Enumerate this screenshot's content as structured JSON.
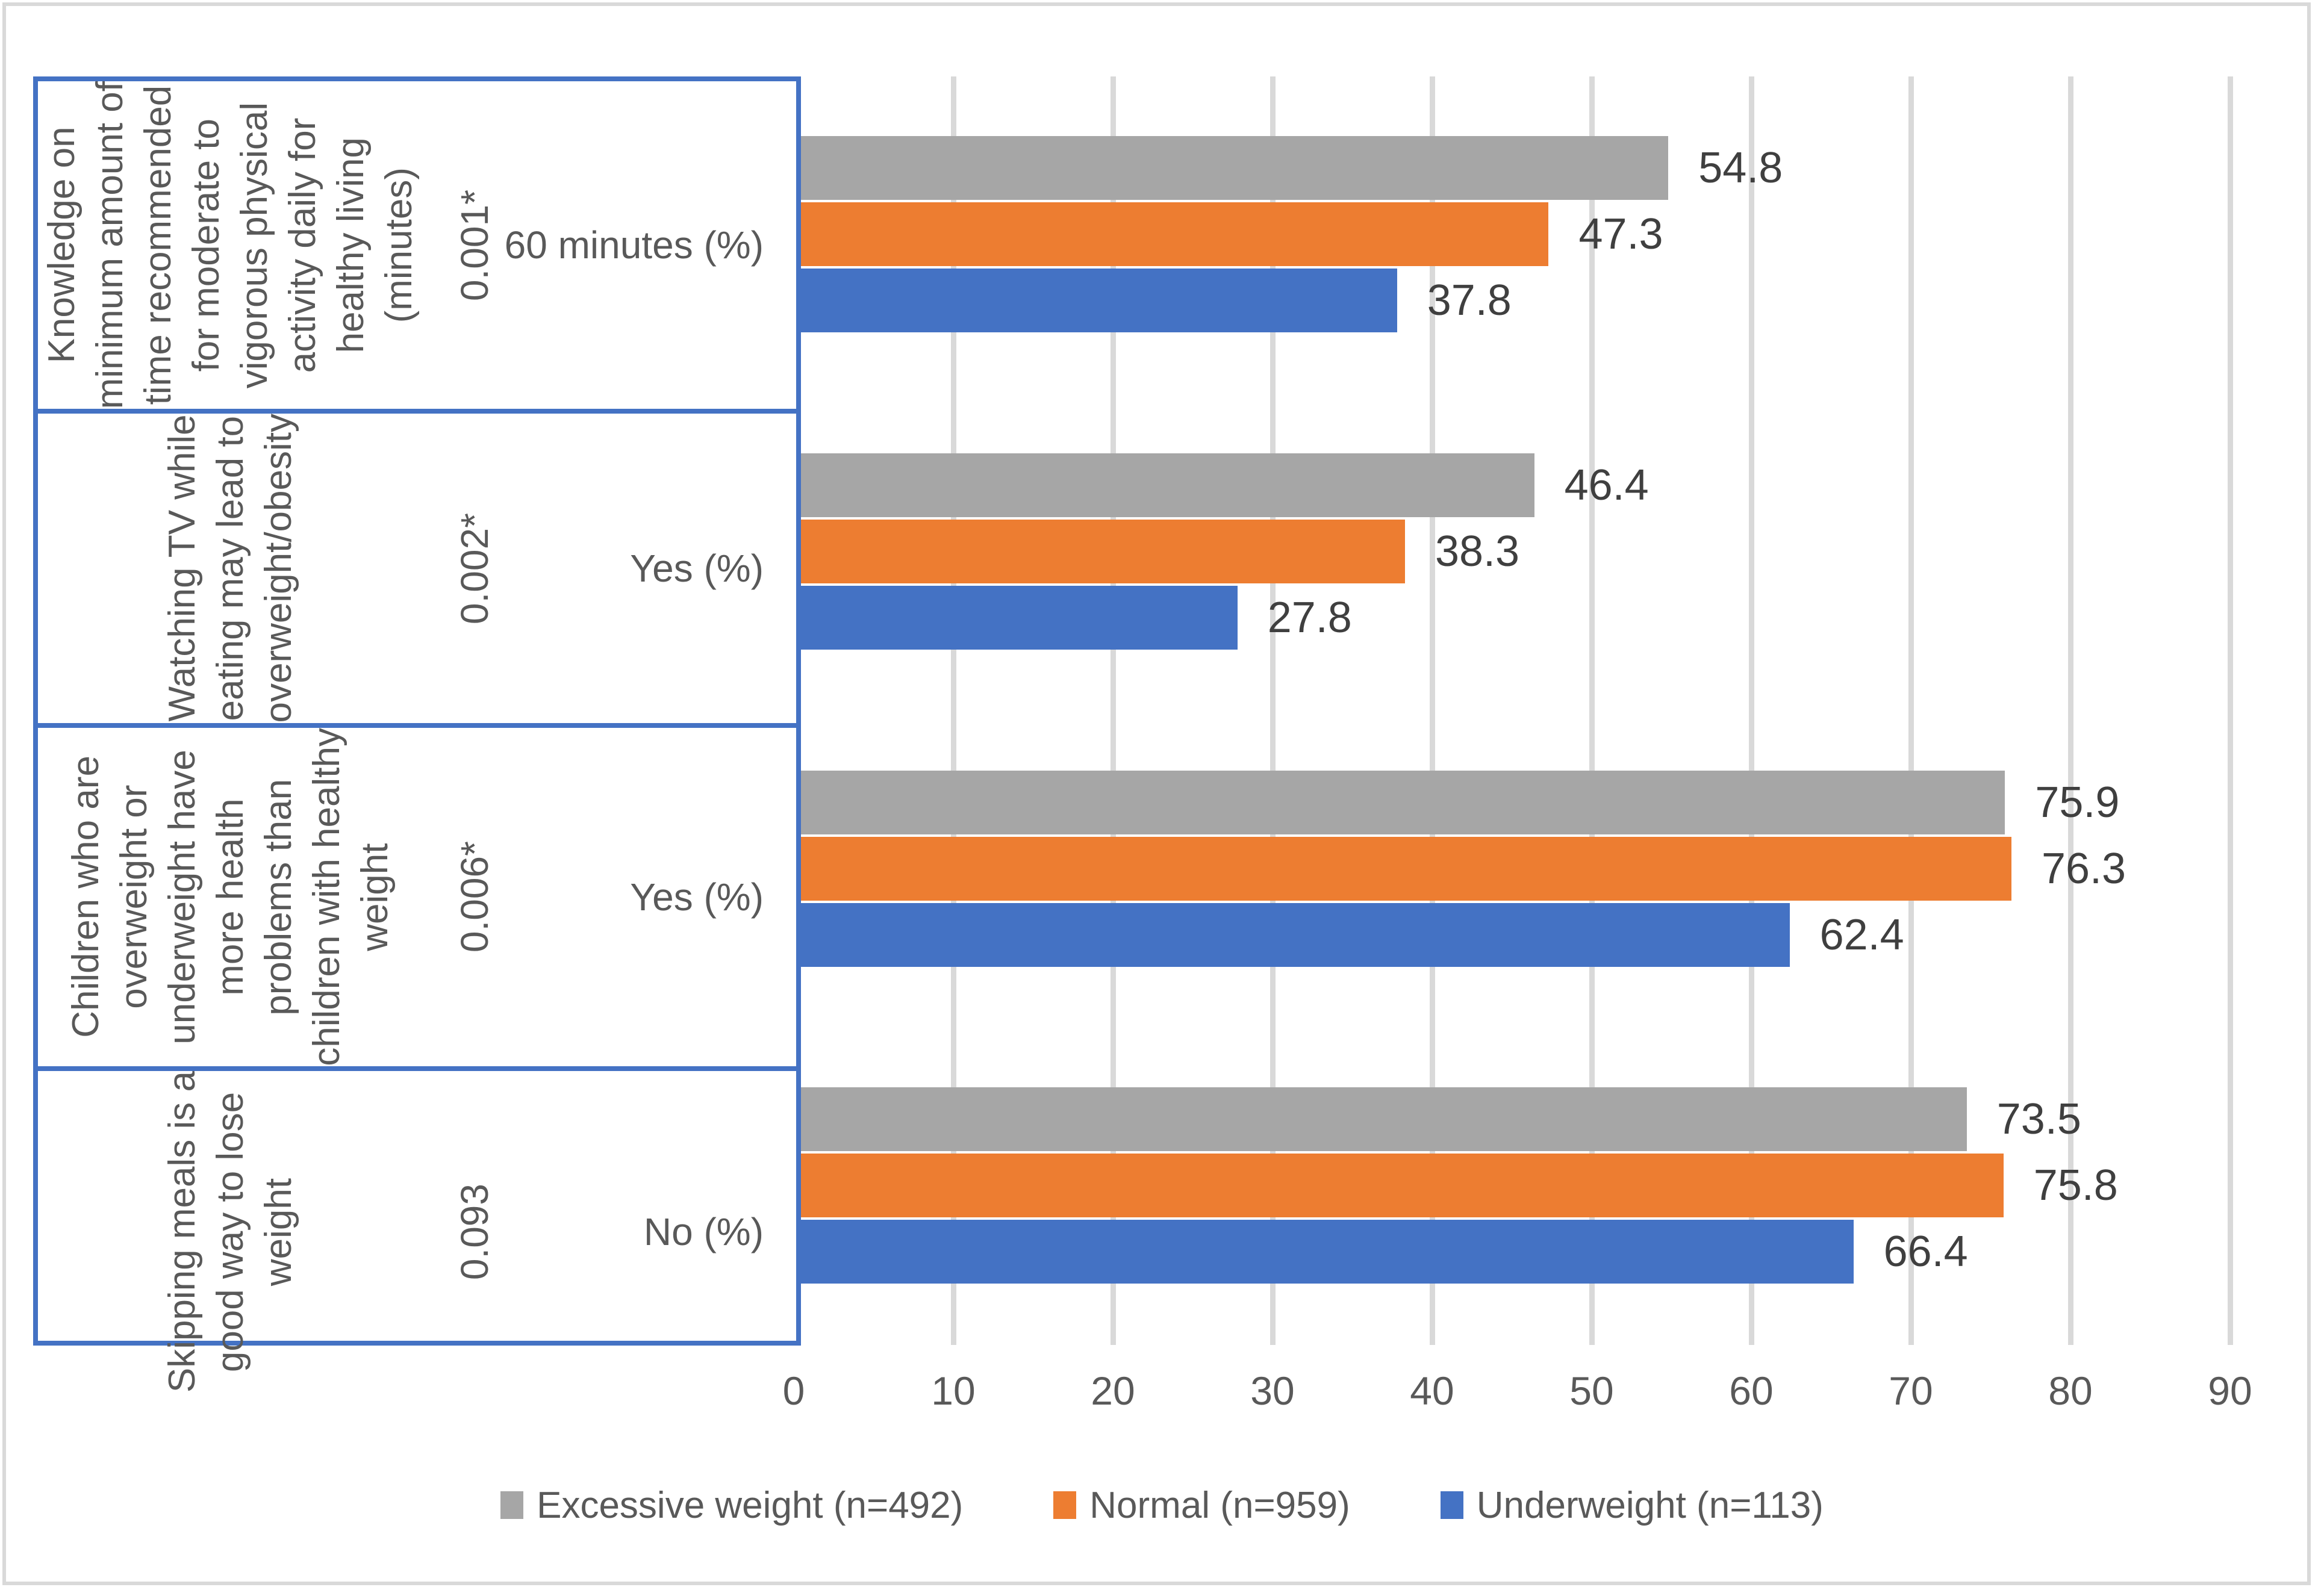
{
  "chart_data": {
    "type": "bar",
    "orientation": "horizontal",
    "title": "",
    "xlabel": "",
    "ylabel": "",
    "xlim": [
      0,
      90
    ],
    "x_ticks": [
      0,
      10,
      20,
      30,
      40,
      50,
      60,
      70,
      80,
      90
    ],
    "grid": "vertical",
    "legend_position": "bottom",
    "categories": [
      {
        "label_lines": [
          "Knowledge on",
          "minimum amount of",
          "time recommended",
          "for moderate to",
          "vigorous physical",
          "activity daily for",
          "healthy  living",
          "(minutes)"
        ],
        "p_value": "0.001*",
        "response_label": "60 minutes  (%)"
      },
      {
        "label_lines": [
          "Watching TV while",
          "eating may lead to",
          "overweight/obesity"
        ],
        "p_value": "0.002*",
        "response_label": "Yes  (%)"
      },
      {
        "label_lines": [
          "Children who are",
          "overweight or",
          "underweight have",
          "more health",
          "problems than",
          "children with healthy",
          "weight"
        ],
        "p_value": "0.006*",
        "response_label": "Yes  (%)"
      },
      {
        "label_lines": [
          "Skipping meals is a",
          "good way to lose",
          "weight"
        ],
        "p_value": "0.093",
        "response_label": "No  (%)"
      }
    ],
    "series": [
      {
        "name": "Excessive weight (n=492)",
        "color": "#a6a6a6",
        "values": [
          54.8,
          46.4,
          75.9,
          73.5
        ]
      },
      {
        "name": "Normal (n=959)",
        "color": "#ed7d31",
        "values": [
          47.3,
          38.3,
          76.3,
          75.8
        ]
      },
      {
        "name": "Underweight (n=113)",
        "color": "#4472c4",
        "values": [
          37.8,
          27.8,
          62.4,
          66.4
        ]
      }
    ],
    "colors": {
      "panel_border": "#4472c4",
      "gridline": "#d9d9d9",
      "outer_border": "#d9d9d9",
      "data_label_text": "#3f3f3f",
      "axis_text": "#595959"
    }
  }
}
